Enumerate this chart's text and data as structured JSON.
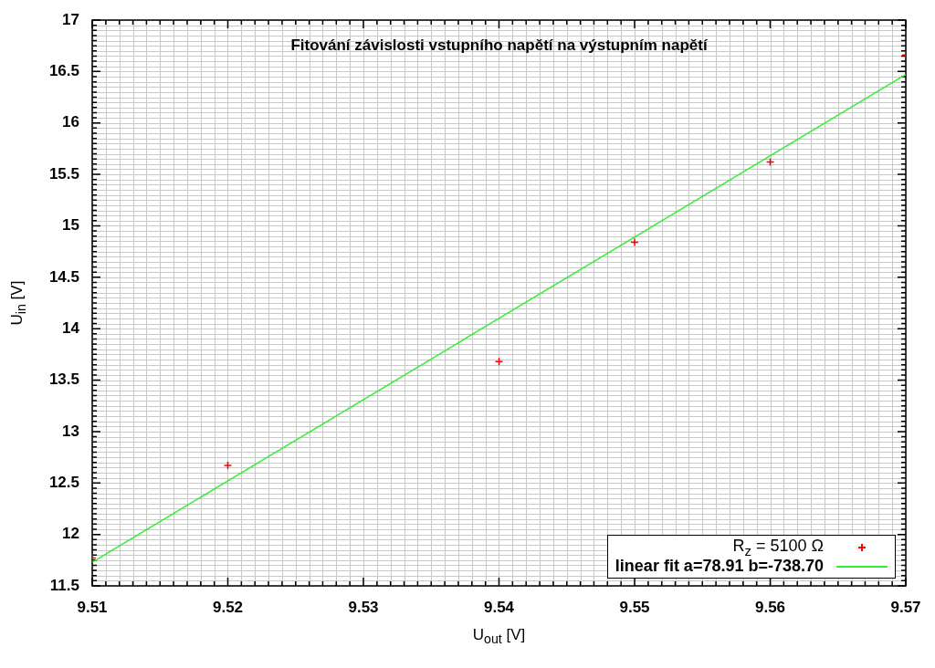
{
  "chart_data": {
    "type": "scatter",
    "title": "Fitování závislosti vstupního napětí na výstupním napětí",
    "xlabel": "U$_{out}$ [V]",
    "ylabel": "U$_{in}$ [V]",
    "xlim": [
      9.51,
      9.57
    ],
    "ylim": [
      11.5,
      17
    ],
    "xticks": [
      9.51,
      9.52,
      9.53,
      9.54,
      9.55,
      9.56,
      9.57
    ],
    "yticks": [
      11.5,
      12,
      12.5,
      13,
      13.5,
      14,
      14.5,
      15,
      15.5,
      16,
      16.5,
      17
    ],
    "grid": true,
    "legend": "bottom right",
    "series": [
      {
        "name": "R$_{z}$ = 5100 Ω",
        "type": "scatter",
        "marker": "cross",
        "color": "#ff0000",
        "x": [
          9.51,
          9.52,
          9.54,
          9.55,
          9.56,
          9.57
        ],
        "values": [
          11.77,
          12.67,
          13.68,
          14.84,
          15.62,
          16.66
        ]
      },
      {
        "name": "linear fit a=78.91 b=-738.70",
        "type": "line",
        "marker": "none",
        "color": "#33ee33",
        "x": [
          9.51,
          9.57
        ],
        "values": [
          11.73,
          16.47
        ]
      }
    ]
  }
}
